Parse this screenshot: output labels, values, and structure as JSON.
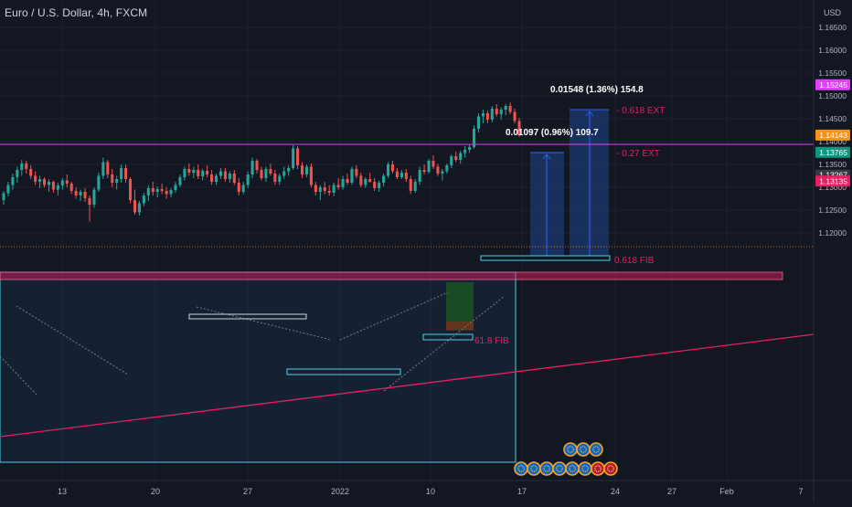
{
  "header": {
    "title": "Euro / U.S. Dollar, 4h, FXCM",
    "currency": "USD"
  },
  "colors": {
    "background": "#131722",
    "up": "#26a69a",
    "down": "#ef5350",
    "magenta": "#e040fb",
    "pink": "#e91e63",
    "cyan": "#4dd0e1",
    "projection_fill": "#1e3a70",
    "projection_line": "#2962ff",
    "grid": "#1c2030",
    "axis_text": "#b2b5be"
  },
  "chart_data": {
    "type": "candlestick",
    "symbol": "EURUSD",
    "timeframe": "4h",
    "x_ticks": [
      "13",
      "20",
      "27",
      "2022",
      "10",
      "17",
      "24",
      "27",
      "Feb",
      "7"
    ],
    "y_ticks": [
      "1.16500",
      "1.16000",
      "1.15500",
      "1.15000",
      "1.14500",
      "1.14000",
      "1.13500",
      "1.13000",
      "1.12500",
      "1.12000"
    ],
    "ylim": [
      1.1175,
      1.1695
    ],
    "price_labels": [
      {
        "text": "1.15245",
        "price": 1.15245,
        "color": "#e040fb"
      },
      {
        "text": "1.14143",
        "price": 1.14143,
        "color": "#f7931a"
      },
      {
        "text": "1.13765",
        "price": 1.13765,
        "color": "#089981"
      },
      {
        "text": "1.13267",
        "price": 1.13267,
        "color": "#363a45"
      },
      {
        "text": "1.13135",
        "price": 1.13135,
        "color": "#e91e63"
      }
    ],
    "horizontal_lines": [
      {
        "name": "magenta-resistance",
        "price": 1.15245
      },
      {
        "name": "current-price-dotted",
        "price": 1.14143
      }
    ],
    "annotations": [
      {
        "text": "0.01548 (1.36%) 154.8",
        "kind": "measure"
      },
      {
        "text": "0.01097 (0.96%) 109.7",
        "kind": "measure"
      },
      {
        "text": "- 0.618 EXT",
        "kind": "fib"
      },
      {
        "text": "- 0.27 EXT",
        "kind": "fib"
      },
      {
        "text": "0.618 FIB",
        "kind": "fib"
      },
      {
        "text": "61.8 FIB",
        "kind": "fib"
      }
    ],
    "candles": [
      [
        1.1272,
        1.1292,
        1.1262,
        1.1287
      ],
      [
        1.1287,
        1.1312,
        1.128,
        1.1305
      ],
      [
        1.1305,
        1.133,
        1.1295,
        1.1322
      ],
      [
        1.1322,
        1.1345,
        1.131,
        1.1338
      ],
      [
        1.1338,
        1.136,
        1.1325,
        1.1352
      ],
      [
        1.1352,
        1.1358,
        1.133,
        1.134
      ],
      [
        1.134,
        1.1348,
        1.1318,
        1.1325
      ],
      [
        1.1325,
        1.1335,
        1.1305,
        1.1312
      ],
      [
        1.1312,
        1.1325,
        1.1298,
        1.1318
      ],
      [
        1.1318,
        1.1322,
        1.13,
        1.1305
      ],
      [
        1.1305,
        1.1318,
        1.129,
        1.1312
      ],
      [
        1.1312,
        1.1315,
        1.1288,
        1.1295
      ],
      [
        1.1295,
        1.131,
        1.1282,
        1.1304
      ],
      [
        1.1304,
        1.132,
        1.1295,
        1.1315
      ],
      [
        1.1315,
        1.1328,
        1.13,
        1.1308
      ],
      [
        1.1308,
        1.1312,
        1.1285,
        1.1292
      ],
      [
        1.1292,
        1.13,
        1.1275,
        1.1282
      ],
      [
        1.1282,
        1.1295,
        1.127,
        1.129
      ],
      [
        1.129,
        1.1298,
        1.1268,
        1.1276
      ],
      [
        1.1276,
        1.1282,
        1.1225,
        1.1262
      ],
      [
        1.1262,
        1.13,
        1.1255,
        1.1295
      ],
      [
        1.1295,
        1.1332,
        1.129,
        1.1325
      ],
      [
        1.1325,
        1.1365,
        1.1318,
        1.1355
      ],
      [
        1.1355,
        1.136,
        1.132,
        1.1328
      ],
      [
        1.1328,
        1.134,
        1.13,
        1.131
      ],
      [
        1.131,
        1.1325,
        1.1295,
        1.1318
      ],
      [
        1.1318,
        1.135,
        1.131,
        1.1342
      ],
      [
        1.1342,
        1.135,
        1.131,
        1.1318
      ],
      [
        1.1318,
        1.1322,
        1.1265,
        1.1272
      ],
      [
        1.1272,
        1.1295,
        1.124,
        1.1245
      ],
      [
        1.1245,
        1.127,
        1.1238,
        1.1265
      ],
      [
        1.1265,
        1.1288,
        1.1258,
        1.1282
      ],
      [
        1.1282,
        1.1305,
        1.127,
        1.1298
      ],
      [
        1.1298,
        1.1312,
        1.1282,
        1.129
      ],
      [
        1.129,
        1.1302,
        1.1278,
        1.1296
      ],
      [
        1.1296,
        1.1308,
        1.1285,
        1.1292
      ],
      [
        1.1292,
        1.13,
        1.1275,
        1.1285
      ],
      [
        1.1285,
        1.1298,
        1.1278,
        1.1294
      ],
      [
        1.1294,
        1.1312,
        1.1288,
        1.1305
      ],
      [
        1.1305,
        1.1328,
        1.13,
        1.1322
      ],
      [
        1.1322,
        1.1345,
        1.1315,
        1.134
      ],
      [
        1.134,
        1.1352,
        1.1325,
        1.1332
      ],
      [
        1.1332,
        1.1345,
        1.132,
        1.1338
      ],
      [
        1.1338,
        1.135,
        1.1318,
        1.1324
      ],
      [
        1.1324,
        1.134,
        1.1315,
        1.1336
      ],
      [
        1.1336,
        1.1348,
        1.1322,
        1.1328
      ],
      [
        1.1328,
        1.1338,
        1.1305,
        1.1312
      ],
      [
        1.1312,
        1.133,
        1.1305,
        1.1325
      ],
      [
        1.1325,
        1.1342,
        1.1318,
        1.1335
      ],
      [
        1.1335,
        1.1342,
        1.1312,
        1.1318
      ],
      [
        1.1318,
        1.1335,
        1.131,
        1.133
      ],
      [
        1.133,
        1.1338,
        1.1305,
        1.131
      ],
      [
        1.131,
        1.132,
        1.1282,
        1.129
      ],
      [
        1.129,
        1.1312,
        1.1285,
        1.1305
      ],
      [
        1.1305,
        1.1335,
        1.1298,
        1.1328
      ],
      [
        1.1328,
        1.1365,
        1.132,
        1.1358
      ],
      [
        1.1358,
        1.1362,
        1.133,
        1.1338
      ],
      [
        1.1338,
        1.1345,
        1.1315,
        1.132
      ],
      [
        1.132,
        1.1345,
        1.1312,
        1.134
      ],
      [
        1.134,
        1.1352,
        1.1325,
        1.133
      ],
      [
        1.133,
        1.1338,
        1.1305,
        1.1312
      ],
      [
        1.1312,
        1.133,
        1.1305,
        1.1325
      ],
      [
        1.1325,
        1.1345,
        1.1318,
        1.1335
      ],
      [
        1.1335,
        1.1348,
        1.1325,
        1.1342
      ],
      [
        1.1342,
        1.1392,
        1.1338,
        1.1385
      ],
      [
        1.1385,
        1.139,
        1.134,
        1.1348
      ],
      [
        1.1348,
        1.1355,
        1.132,
        1.1328
      ],
      [
        1.1328,
        1.135,
        1.1322,
        1.1345
      ],
      [
        1.1345,
        1.1352,
        1.13,
        1.1305
      ],
      [
        1.1305,
        1.1312,
        1.1282,
        1.129
      ],
      [
        1.129,
        1.1305,
        1.1272,
        1.13
      ],
      [
        1.13,
        1.1312,
        1.1285,
        1.1292
      ],
      [
        1.1292,
        1.1305,
        1.1282,
        1.1288
      ],
      [
        1.1288,
        1.131,
        1.128,
        1.1305
      ],
      [
        1.1305,
        1.132,
        1.1295,
        1.13
      ],
      [
        1.13,
        1.1325,
        1.1295,
        1.1318
      ],
      [
        1.1318,
        1.133,
        1.1305,
        1.131
      ],
      [
        1.131,
        1.1345,
        1.1305,
        1.134
      ],
      [
        1.134,
        1.1348,
        1.132,
        1.1325
      ],
      [
        1.1325,
        1.1332,
        1.13,
        1.1305
      ],
      [
        1.1305,
        1.1322,
        1.1298,
        1.1318
      ],
      [
        1.1318,
        1.1332,
        1.131,
        1.1312
      ],
      [
        1.1312,
        1.132,
        1.1292,
        1.1298
      ],
      [
        1.1298,
        1.1315,
        1.129,
        1.131
      ],
      [
        1.131,
        1.133,
        1.1302,
        1.1325
      ],
      [
        1.1325,
        1.1355,
        1.132,
        1.135
      ],
      [
        1.135,
        1.1358,
        1.133,
        1.1335
      ],
      [
        1.1335,
        1.1342,
        1.1318,
        1.1322
      ],
      [
        1.1322,
        1.1338,
        1.1318,
        1.1332
      ],
      [
        1.1332,
        1.134,
        1.1312,
        1.1318
      ],
      [
        1.1318,
        1.1325,
        1.1285,
        1.1292
      ],
      [
        1.1292,
        1.1318,
        1.1288,
        1.1312
      ],
      [
        1.1312,
        1.1345,
        1.1305,
        1.1338
      ],
      [
        1.1338,
        1.135,
        1.1328,
        1.1334
      ],
      [
        1.1334,
        1.1362,
        1.133,
        1.1358
      ],
      [
        1.1358,
        1.137,
        1.134,
        1.1345
      ],
      [
        1.1345,
        1.1352,
        1.1325,
        1.133
      ],
      [
        1.133,
        1.134,
        1.1315,
        1.1335
      ],
      [
        1.1335,
        1.1352,
        1.133,
        1.1348
      ],
      [
        1.1348,
        1.1372,
        1.1342,
        1.1368
      ],
      [
        1.1368,
        1.1378,
        1.1355,
        1.136
      ],
      [
        1.136,
        1.138,
        1.1352,
        1.1375
      ],
      [
        1.1375,
        1.139,
        1.1365,
        1.1382
      ],
      [
        1.1382,
        1.1395,
        1.1375,
        1.1388
      ],
      [
        1.1388,
        1.1435,
        1.1385,
        1.1428
      ],
      [
        1.1428,
        1.1462,
        1.142,
        1.1455
      ],
      [
        1.1455,
        1.147,
        1.144,
        1.1462
      ],
      [
        1.1462,
        1.1468,
        1.144,
        1.1448
      ],
      [
        1.1448,
        1.1478,
        1.1442,
        1.1472
      ],
      [
        1.1472,
        1.1482,
        1.1455,
        1.146
      ],
      [
        1.146,
        1.1475,
        1.1448,
        1.147
      ],
      [
        1.147,
        1.1482,
        1.1458,
        1.1478
      ],
      [
        1.1478,
        1.1485,
        1.146,
        1.1465
      ],
      [
        1.1465,
        1.1472,
        1.144,
        1.1445
      ],
      [
        1.1445,
        1.1452,
        1.141,
        1.1414
      ]
    ]
  }
}
